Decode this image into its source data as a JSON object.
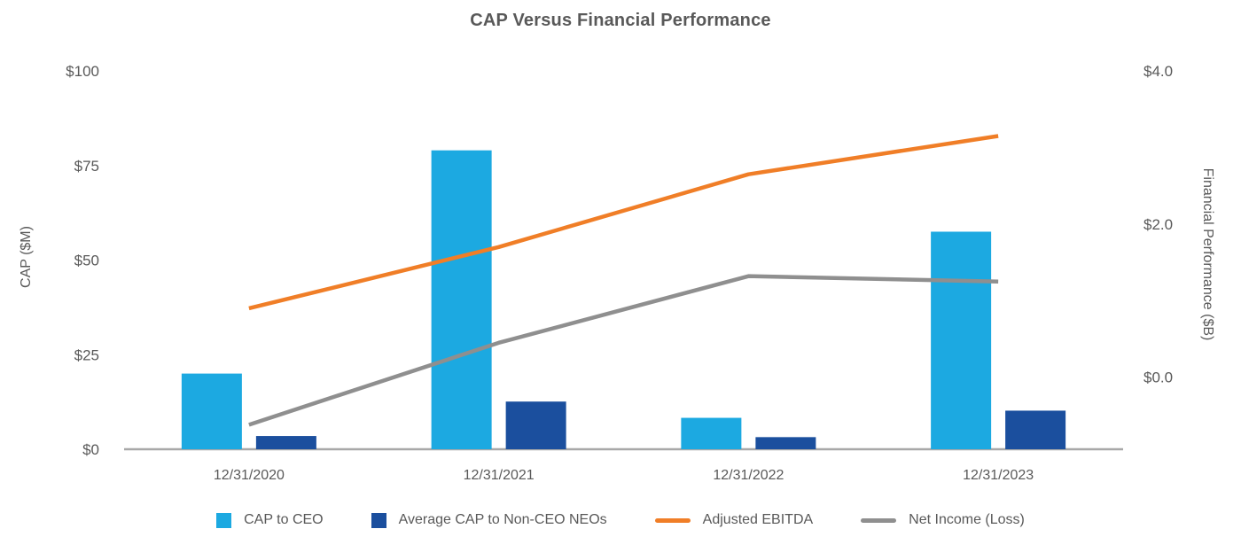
{
  "chart_data": {
    "type": "combo",
    "title": "CAP Versus Financial Performance",
    "categories": [
      "12/31/2020",
      "12/31/2021",
      "12/31/2022",
      "12/31/2023"
    ],
    "left_axis": {
      "label": "CAP ($M)",
      "tick_labels": [
        "$0",
        "$25",
        "$50",
        "$75",
        "$100"
      ],
      "tick_values": [
        0,
        25,
        50,
        75,
        100
      ],
      "range": [
        0,
        100
      ]
    },
    "right_axis": {
      "label": "Financial Performance ($B)",
      "tick_labels": [
        "$0.0",
        "$2.0",
        "$4.0"
      ],
      "tick_values": [
        0,
        2,
        4
      ],
      "range": [
        -0.94,
        4
      ]
    },
    "bar_series": [
      {
        "name": "CAP to CEO",
        "color": "#1CA9E1",
        "axis": "left",
        "values": [
          20,
          79,
          8.3,
          57.5
        ]
      },
      {
        "name": "Average CAP to Non-CEO NEOs",
        "color": "#1B4F9E",
        "axis": "left",
        "values": [
          3.5,
          12.6,
          3.2,
          10.2
        ]
      }
    ],
    "line_series": [
      {
        "name": "Adjusted EBITDA",
        "color": "#F07E27",
        "axis": "right",
        "values": [
          0.9,
          1.7,
          2.65,
          3.15
        ]
      },
      {
        "name": "Net Income (Loss)",
        "color": "#8F8F8F",
        "axis": "right",
        "values": [
          -0.62,
          0.45,
          1.32,
          1.25
        ]
      }
    ],
    "legend_position": "bottom",
    "gridlines": false
  },
  "colors": {
    "text": "#595959",
    "axis_line": "#A8A8A8",
    "background": "#FFFFFF"
  }
}
